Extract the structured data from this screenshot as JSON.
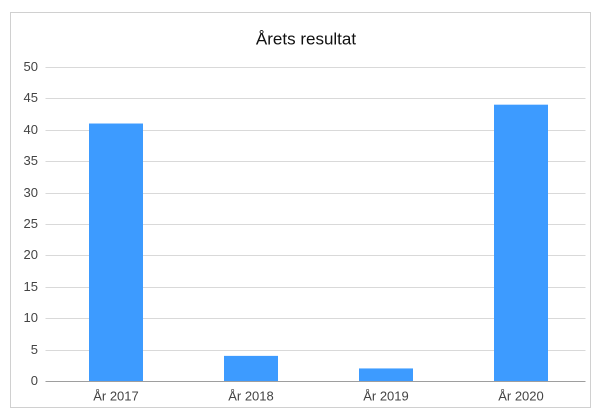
{
  "chart_data": {
    "type": "bar",
    "title": "Årets resultat",
    "categories": [
      "År 2017",
      "År 2018",
      "År 2019",
      "År 2020"
    ],
    "values": [
      41,
      4,
      2,
      44
    ],
    "color": "#3d9bff",
    "ylim": [
      0,
      50
    ],
    "yticks": [
      0,
      5,
      10,
      15,
      20,
      25,
      30,
      35,
      40,
      45,
      50
    ],
    "grid": true
  }
}
